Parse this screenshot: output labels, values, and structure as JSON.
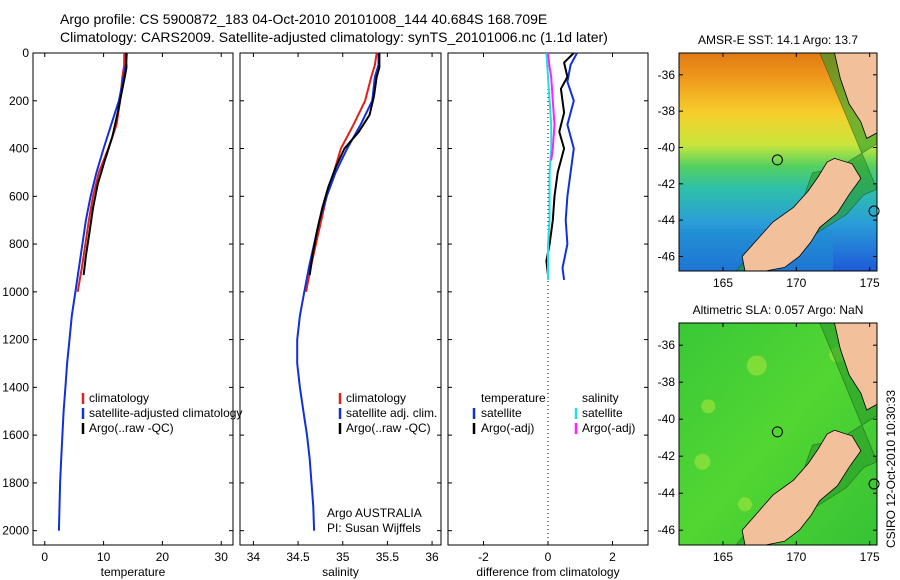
{
  "header": {
    "line1": "Argo profile: CS 5900872_183 04-Oct-2010 20101008_144 40.684S 168.709E",
    "line2": "Climatology: CARS2009. Satellite-adjusted climatology: synTS_20101006.nc (1.1d later)"
  },
  "side_label": "CSIRO 12-Oct-2010 10:30:33",
  "colors": {
    "clim": "#e0201a",
    "sat": "#1230d8",
    "argo": "#000000",
    "cyan": "#22e0e0",
    "magenta": "#ff22ff",
    "land": "#f2c09a"
  },
  "chart_data": [
    {
      "type": "line",
      "xlabel": "temperature",
      "xlim": [
        -2,
        32
      ],
      "ylim": [
        2060,
        0
      ],
      "xticks": [
        0,
        10,
        20,
        30
      ],
      "yticks": [
        0,
        200,
        400,
        600,
        800,
        1000,
        1200,
        1400,
        1600,
        1800,
        2000
      ],
      "ytick_labels": [
        "0",
        "200",
        "400",
        "600",
        "800",
        "1000",
        "1200",
        "1400",
        "1600",
        "1800",
        "2000"
      ],
      "xtick_labels": [
        "0",
        "10",
        "20",
        "30"
      ],
      "legend": [
        "climatology",
        "satellite-adjusted climatology",
        "Argo(..raw -QC)"
      ],
      "series": [
        {
          "name": "climatology",
          "color_key": "clim",
          "points": [
            [
              13.5,
              0
            ],
            [
              13.5,
              50
            ],
            [
              13.2,
              100
            ],
            [
              12.8,
              200
            ],
            [
              12.2,
              300
            ],
            [
              10.8,
              400
            ],
            [
              9.2,
              500
            ],
            [
              8.2,
              600
            ],
            [
              7.5,
              700
            ],
            [
              6.9,
              800
            ],
            [
              6.3,
              900
            ],
            [
              5.6,
              1000
            ]
          ]
        },
        {
          "name": "satellite-adjusted climatology",
          "color_key": "sat",
          "points": [
            [
              14.0,
              0
            ],
            [
              13.8,
              50
            ],
            [
              13.4,
              100
            ],
            [
              12.6,
              200
            ],
            [
              11.3,
              300
            ],
            [
              10.0,
              400
            ],
            [
              8.8,
              500
            ],
            [
              7.8,
              600
            ],
            [
              7.0,
              700
            ],
            [
              6.4,
              800
            ],
            [
              5.8,
              900
            ],
            [
              5.2,
              1000
            ],
            [
              4.6,
              1100
            ],
            [
              4.2,
              1200
            ],
            [
              3.8,
              1300
            ],
            [
              3.5,
              1400
            ],
            [
              3.2,
              1500
            ],
            [
              3.0,
              1600
            ],
            [
              2.8,
              1700
            ],
            [
              2.6,
              1800
            ],
            [
              2.5,
              1900
            ],
            [
              2.4,
              2000
            ]
          ]
        },
        {
          "name": "Argo(..raw -QC)",
          "color_key": "argo",
          "points": [
            [
              13.8,
              0
            ],
            [
              13.9,
              60
            ],
            [
              13.6,
              100
            ],
            [
              13.2,
              150
            ],
            [
              12.4,
              250
            ],
            [
              11.5,
              350
            ],
            [
              10.2,
              450
            ],
            [
              9.0,
              550
            ],
            [
              8.2,
              650
            ],
            [
              7.6,
              750
            ],
            [
              7.0,
              850
            ],
            [
              6.6,
              930
            ]
          ]
        }
      ]
    },
    {
      "type": "line",
      "xlabel": "salinity",
      "xlim": [
        33.85,
        36.1
      ],
      "ylim": [
        2060,
        0
      ],
      "xticks": [
        34,
        34.5,
        35,
        35.5,
        36
      ],
      "xtick_labels": [
        "34",
        "34.5",
        "35",
        "35.5",
        "36"
      ],
      "legend": [
        "climatology",
        "satellite adj. clim.",
        "Argo(..raw -QC)"
      ],
      "annotations": [
        "Argo AUSTRALIA",
        "PI: Susan Wijffels"
      ],
      "series": [
        {
          "name": "climatology",
          "color_key": "clim",
          "points": [
            [
              35.38,
              0
            ],
            [
              35.36,
              50
            ],
            [
              35.32,
              100
            ],
            [
              35.25,
              200
            ],
            [
              35.12,
              300
            ],
            [
              34.98,
              400
            ],
            [
              34.9,
              500
            ],
            [
              34.82,
              600
            ],
            [
              34.76,
              700
            ],
            [
              34.7,
              800
            ],
            [
              34.64,
              900
            ],
            [
              34.59,
              1000
            ]
          ]
        },
        {
          "name": "satellite adj. clim.",
          "color_key": "sat",
          "points": [
            [
              35.4,
              0
            ],
            [
              35.4,
              50
            ],
            [
              35.36,
              100
            ],
            [
              35.33,
              200
            ],
            [
              35.2,
              300
            ],
            [
              35.05,
              400
            ],
            [
              34.92,
              500
            ],
            [
              34.82,
              600
            ],
            [
              34.74,
              700
            ],
            [
              34.68,
              800
            ],
            [
              34.62,
              900
            ],
            [
              34.57,
              1000
            ],
            [
              34.52,
              1100
            ],
            [
              34.49,
              1200
            ],
            [
              34.49,
              1300
            ],
            [
              34.52,
              1400
            ],
            [
              34.56,
              1500
            ],
            [
              34.6,
              1600
            ],
            [
              34.63,
              1700
            ],
            [
              34.65,
              1800
            ],
            [
              34.67,
              1900
            ],
            [
              34.68,
              2000
            ]
          ]
        },
        {
          "name": "Argo(..raw -QC)",
          "color_key": "argo",
          "points": [
            [
              35.41,
              0
            ],
            [
              35.41,
              60
            ],
            [
              35.38,
              100
            ],
            [
              35.35,
              180
            ],
            [
              35.3,
              260
            ],
            [
              35.18,
              330
            ],
            [
              35.02,
              400
            ],
            [
              34.92,
              480
            ],
            [
              34.84,
              560
            ],
            [
              34.77,
              650
            ],
            [
              34.71,
              750
            ],
            [
              34.66,
              850
            ],
            [
              34.63,
              930
            ]
          ]
        }
      ]
    },
    {
      "type": "line",
      "xlabel": "difference from climatology",
      "xlim": [
        -3.1,
        3.1
      ],
      "ylim": [
        2060,
        0
      ],
      "xticks": [
        -2,
        0,
        2
      ],
      "xtick_labels": [
        "-2",
        "0",
        "2"
      ],
      "legend_titles": [
        "temperature",
        "salinity"
      ],
      "legend_left": [
        "satellite",
        "Argo(-adj)"
      ],
      "legend_right": [
        "satellite",
        "Argo(-adj)"
      ],
      "series": [
        {
          "name": "temperature satellite",
          "color_key": "sat",
          "points": [
            [
              0.9,
              0
            ],
            [
              0.7,
              50
            ],
            [
              0.6,
              120
            ],
            [
              0.8,
              200
            ],
            [
              0.6,
              300
            ],
            [
              0.8,
              400
            ],
            [
              0.7,
              500
            ],
            [
              0.6,
              600
            ],
            [
              0.55,
              700
            ],
            [
              0.6,
              800
            ],
            [
              0.45,
              900
            ],
            [
              0.5,
              950
            ]
          ]
        },
        {
          "name": "temperature Argo(-adj)",
          "color_key": "argo",
          "points": [
            [
              0.8,
              0
            ],
            [
              0.5,
              40
            ],
            [
              0.6,
              100
            ],
            [
              0.4,
              150
            ],
            [
              0.5,
              250
            ],
            [
              0.35,
              330
            ],
            [
              0.5,
              400
            ],
            [
              0.4,
              450
            ],
            [
              0.3,
              500
            ],
            [
              0.2,
              600
            ],
            [
              0.15,
              700
            ],
            [
              0.05,
              800
            ],
            [
              -0.05,
              870
            ],
            [
              0.0,
              930
            ]
          ]
        },
        {
          "name": "salinity satellite",
          "color_key": "cyan",
          "points": [
            [
              -0.05,
              0
            ],
            [
              0.0,
              100
            ],
            [
              0.05,
              200
            ],
            [
              0.1,
              300
            ],
            [
              0.1,
              400
            ],
            [
              0.05,
              500
            ],
            [
              0.05,
              600
            ],
            [
              0.05,
              700
            ],
            [
              0.0,
              800
            ],
            [
              0.0,
              900
            ],
            [
              0.0,
              950
            ]
          ]
        },
        {
          "name": "salinity Argo(-adj)",
          "color_key": "magenta",
          "points": [
            [
              0.0,
              0
            ],
            [
              0.05,
              60
            ],
            [
              0.1,
              100
            ],
            [
              0.15,
              200
            ],
            [
              0.2,
              300
            ],
            [
              0.15,
              400
            ],
            [
              0.1,
              450
            ]
          ]
        }
      ]
    },
    {
      "type": "heatmap",
      "title": "AMSR-E SST: 14.1 Argo: 13.7",
      "xlim": [
        162,
        175.5
      ],
      "ylim": [
        -46.8,
        -34.8
      ],
      "xticks": [
        165,
        170,
        175
      ],
      "yticks": [
        -36,
        -38,
        -40,
        -42,
        -44,
        -46
      ],
      "xtick_labels": [
        "165",
        "170",
        "175"
      ],
      "ytick_labels": [
        "-36",
        "-38",
        "-40",
        "-42",
        "-44",
        "-46"
      ],
      "marker": [
        168.709,
        -40.684
      ]
    },
    {
      "type": "heatmap",
      "title": "Altimetric SLA: 0.057 Argo: NaN",
      "xlim": [
        162,
        175.5
      ],
      "ylim": [
        -46.8,
        -34.8
      ],
      "xticks": [
        165,
        170,
        175
      ],
      "yticks": [
        -36,
        -38,
        -40,
        -42,
        -44,
        -46
      ],
      "xtick_labels": [
        "165",
        "170",
        "175"
      ],
      "ytick_labels": [
        "-36",
        "-38",
        "-40",
        "-42",
        "-44",
        "-46"
      ],
      "marker": [
        168.709,
        -40.684
      ]
    }
  ]
}
